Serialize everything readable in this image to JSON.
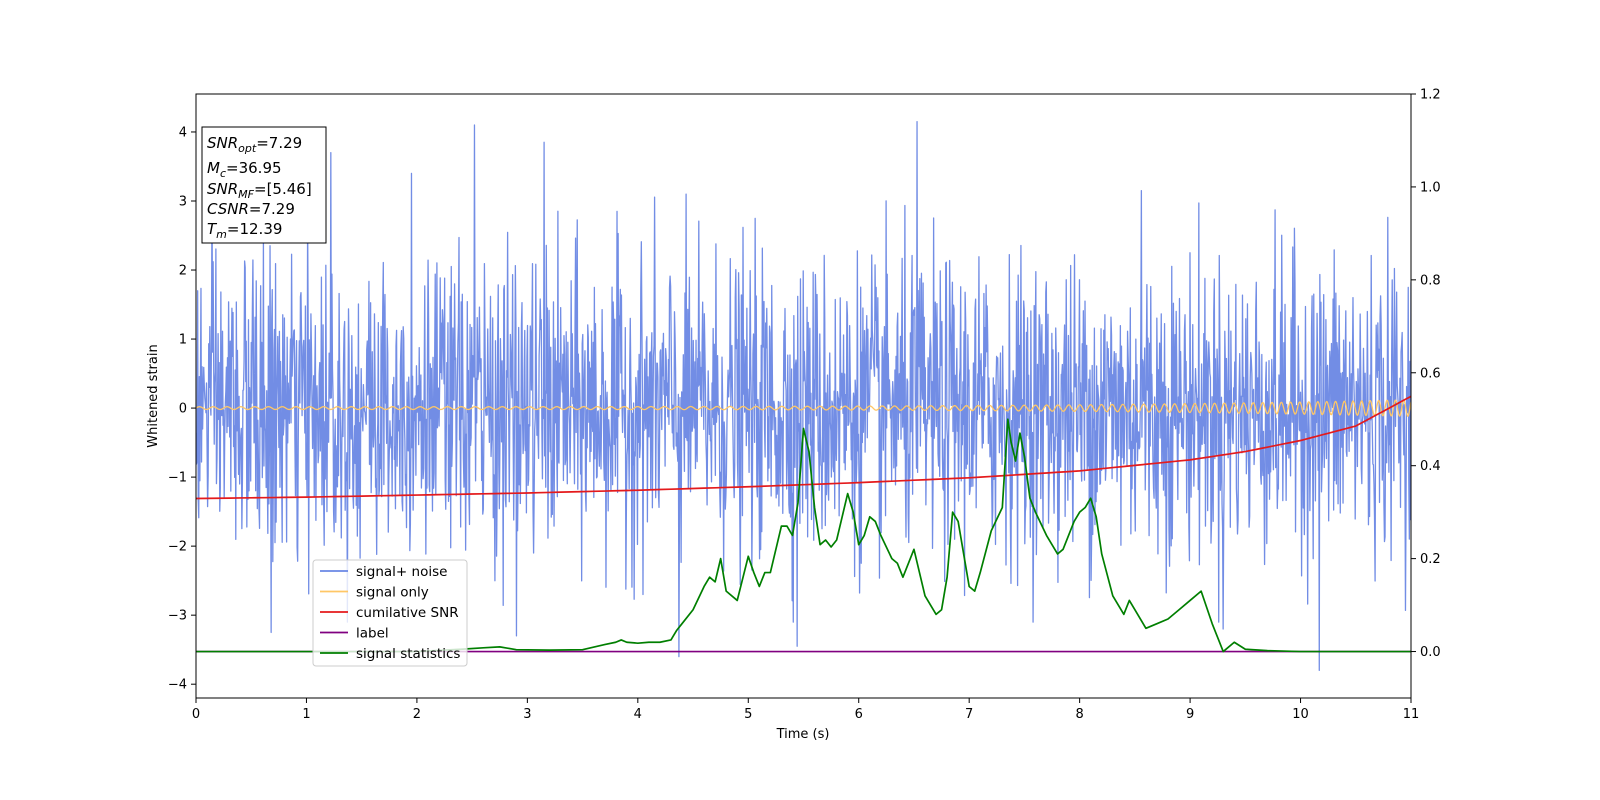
{
  "chart_data": {
    "type": "line",
    "xlabel": "Time (s)",
    "ylabel": "Whitened strain",
    "xlim": [
      0,
      11
    ],
    "ylim_left": [
      -4.2,
      4.55
    ],
    "ylim_right": [
      -0.1,
      1.2
    ],
    "x_ticks": [
      0,
      1,
      2,
      3,
      4,
      5,
      6,
      7,
      8,
      9,
      10,
      11
    ],
    "y_left_ticks": [
      -4,
      -3,
      -2,
      -1,
      0,
      1,
      2,
      3,
      4
    ],
    "y_left_tick_labels": [
      "−4",
      "−3",
      "−2",
      "−1",
      "0",
      "1",
      "2",
      "3",
      "4"
    ],
    "y_right_ticks": [
      0.0,
      0.2,
      0.4,
      0.6,
      0.8,
      1.0,
      1.2
    ],
    "y_right_tick_labels": [
      "0.0",
      "0.2",
      "0.4",
      "0.6",
      "0.8",
      "1.0",
      "1.2"
    ],
    "annotation_box": {
      "lines": [
        {
          "base": "SNR",
          "sub": "opt",
          "value": "=7.29"
        },
        {
          "base": "M",
          "sub": "c",
          "value": "=36.95"
        },
        {
          "base": "SNR",
          "sub": "MF",
          "value": "=[5.46]"
        },
        {
          "base": "CSNR",
          "sub": "",
          "value": "=7.29"
        },
        {
          "base": "T",
          "sub": "m",
          "value": "=12.39"
        }
      ]
    },
    "legend": {
      "placement": "lower-left",
      "entries": [
        {
          "name": "signal+ noise",
          "color": "#6a87e4"
        },
        {
          "name": "signal only",
          "color": "#ffc766"
        },
        {
          "name": "cumilative SNR",
          "color": "#e41a1c"
        },
        {
          "name": "label",
          "color": "#800080"
        },
        {
          "name": "signal statistics",
          "color": "#007f00"
        }
      ]
    },
    "series": [
      {
        "name": "signal+ noise",
        "axis": "left",
        "color": "#6a87e4",
        "kind": "noise",
        "std": 1.05,
        "n_points": 2200,
        "spikes": [
          {
            "x": 2.52,
            "y": 4.1
          },
          {
            "x": 6.53,
            "y": 4.15
          },
          {
            "x": 3.15,
            "y": 3.85
          },
          {
            "x": 1.22,
            "y": 3.7
          },
          {
            "x": 10.17,
            "y": -3.8
          },
          {
            "x": 4.37,
            "y": -3.6
          },
          {
            "x": 5.44,
            "y": -3.45
          },
          {
            "x": 0.68,
            "y": -3.25
          },
          {
            "x": 2.9,
            "y": -3.3
          },
          {
            "x": 8.56,
            "y": 3.15
          },
          {
            "x": 9.3,
            "y": -3.2
          },
          {
            "x": 1.95,
            "y": 3.4
          }
        ]
      },
      {
        "name": "signal only",
        "axis": "left",
        "color": "#ffc766",
        "kind": "chirp",
        "start_amp": 0.02,
        "end_amp": 0.12
      },
      {
        "name": "cumilative SNR",
        "axis": "left",
        "color": "#e41a1c",
        "x": [
          0,
          1,
          2,
          3,
          4,
          5,
          6,
          7,
          8,
          9,
          9.5,
          10,
          10.5,
          11
        ],
        "y": [
          -1.31,
          -1.29,
          -1.26,
          -1.23,
          -1.19,
          -1.14,
          -1.08,
          -1.01,
          -0.91,
          -0.75,
          -0.63,
          -0.47,
          -0.26,
          0.17
        ]
      },
      {
        "name": "label",
        "axis": "right",
        "color": "#800080",
        "x": [
          0,
          11
        ],
        "y": [
          0.0,
          0.0
        ]
      },
      {
        "name": "signal statistics",
        "axis": "right",
        "color": "#007f00",
        "x": [
          0,
          0.5,
          1.0,
          1.5,
          2.0,
          2.4,
          2.6,
          2.75,
          2.9,
          3.2,
          3.5,
          3.7,
          3.8,
          3.85,
          3.9,
          4.0,
          4.1,
          4.2,
          4.3,
          4.35,
          4.4,
          4.5,
          4.6,
          4.65,
          4.7,
          4.75,
          4.8,
          4.9,
          5.0,
          5.05,
          5.1,
          5.15,
          5.2,
          5.3,
          5.35,
          5.4,
          5.45,
          5.5,
          5.55,
          5.6,
          5.65,
          5.7,
          5.75,
          5.8,
          5.9,
          5.95,
          6.0,
          6.05,
          6.1,
          6.15,
          6.2,
          6.3,
          6.35,
          6.4,
          6.45,
          6.5,
          6.6,
          6.7,
          6.75,
          6.8,
          6.85,
          6.9,
          7.0,
          7.05,
          7.1,
          7.2,
          7.3,
          7.35,
          7.38,
          7.42,
          7.46,
          7.5,
          7.55,
          7.6,
          7.7,
          7.8,
          7.85,
          7.95,
          8.0,
          8.05,
          8.1,
          8.15,
          8.2,
          8.3,
          8.4,
          8.45,
          8.5,
          8.6,
          8.7,
          8.8,
          8.9,
          9.0,
          9.1,
          9.2,
          9.25,
          9.3,
          9.4,
          9.5,
          9.7,
          10.0,
          10.5,
          11.0
        ],
        "y": [
          0.0,
          0.0,
          0.0,
          0.0,
          0.0,
          0.005,
          0.008,
          0.01,
          0.004,
          0.003,
          0.004,
          0.015,
          0.02,
          0.025,
          0.02,
          0.018,
          0.02,
          0.02,
          0.025,
          0.045,
          0.06,
          0.09,
          0.14,
          0.16,
          0.15,
          0.2,
          0.13,
          0.11,
          0.205,
          0.17,
          0.14,
          0.17,
          0.17,
          0.27,
          0.27,
          0.25,
          0.32,
          0.48,
          0.43,
          0.31,
          0.23,
          0.24,
          0.225,
          0.24,
          0.34,
          0.3,
          0.23,
          0.25,
          0.29,
          0.28,
          0.25,
          0.2,
          0.19,
          0.16,
          0.19,
          0.22,
          0.12,
          0.08,
          0.09,
          0.16,
          0.3,
          0.28,
          0.14,
          0.13,
          0.17,
          0.26,
          0.31,
          0.5,
          0.45,
          0.41,
          0.47,
          0.42,
          0.33,
          0.3,
          0.25,
          0.21,
          0.22,
          0.28,
          0.3,
          0.31,
          0.33,
          0.29,
          0.21,
          0.12,
          0.08,
          0.11,
          0.09,
          0.05,
          0.06,
          0.07,
          0.09,
          0.11,
          0.13,
          0.06,
          0.03,
          0.0,
          0.02,
          0.005,
          0.002,
          0.0,
          0.0,
          0.0
        ]
      }
    ]
  }
}
